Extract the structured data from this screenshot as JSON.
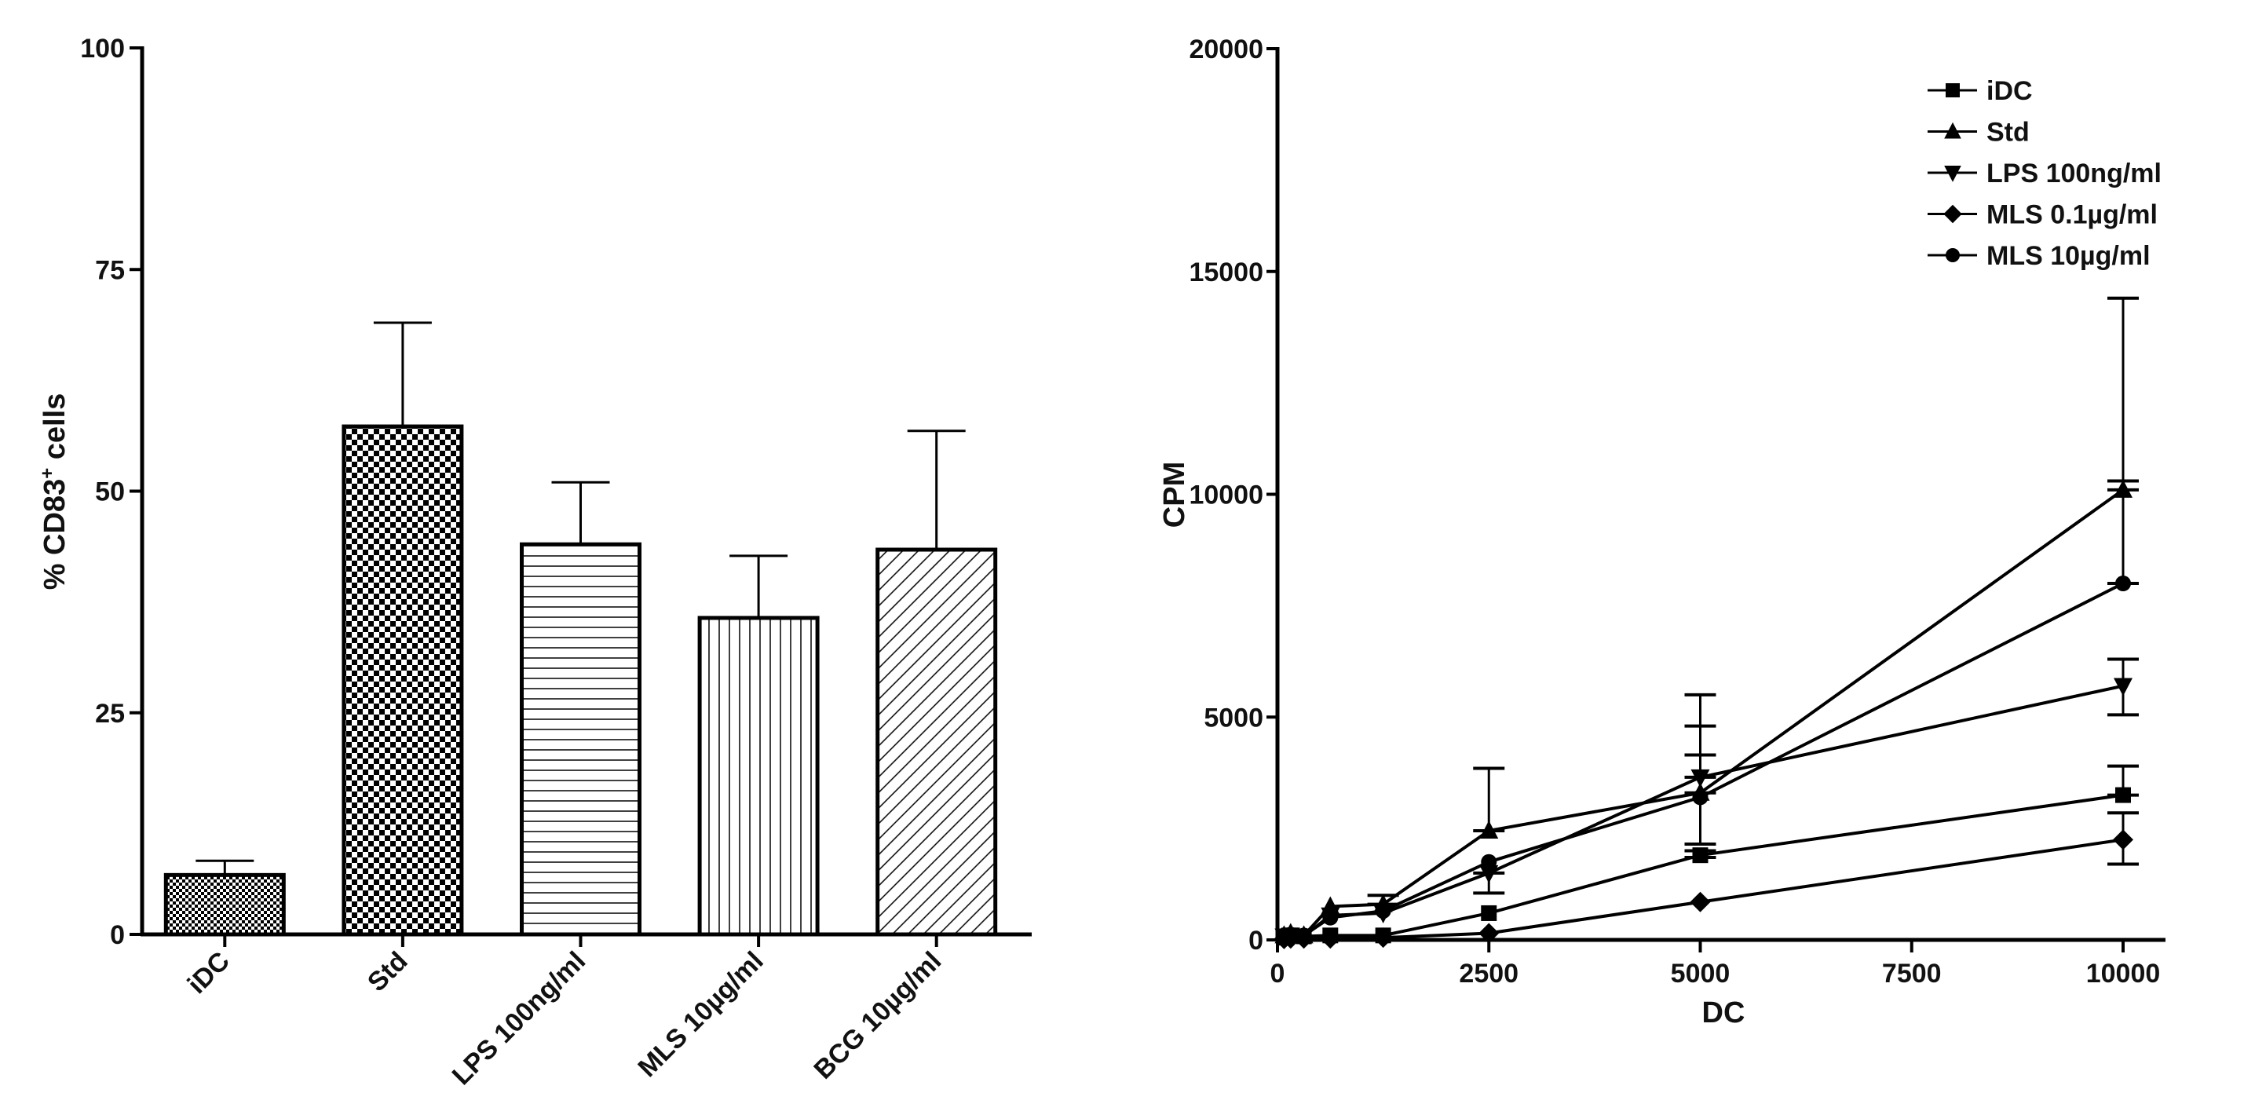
{
  "chart_data": [
    {
      "type": "bar",
      "title": "",
      "xlabel": "",
      "ylabel": "% CD83",
      "ylabel_sup": "+",
      "ylabel_suffix": " cells",
      "ylim": [
        0,
        100
      ],
      "yticks": [
        "0",
        "25",
        "50",
        "75",
        "100"
      ],
      "categories": [
        "iDC",
        "Std",
        "LPS 100ng/ml",
        "MLS 10µg/ml",
        "BCG 10µg/ml"
      ],
      "values": [
        6.7,
        57.3,
        44.0,
        35.7,
        43.4
      ],
      "error_upper": [
        8.3,
        69.0,
        51.0,
        42.7,
        56.8
      ],
      "patterns": [
        "fine-checker",
        "coarse-checker",
        "horizontal-lines",
        "vertical-lines",
        "diagonal-lines"
      ]
    },
    {
      "type": "line",
      "title": "",
      "xlabel": "DC",
      "ylabel": "CPM",
      "xlim": [
        0,
        10500
      ],
      "ylim": [
        0,
        20000
      ],
      "xticks": [
        "0",
        "2500",
        "5000",
        "7500",
        "10000"
      ],
      "yticks": [
        "0",
        "5000",
        "10000",
        "15000",
        "20000"
      ],
      "legend_position": "top-right",
      "x": [
        78,
        156,
        312,
        625,
        1250,
        2500,
        5000,
        10000
      ],
      "series": [
        {
          "name": "iDC",
          "marker": "square",
          "values": [
            50,
            100,
            80,
            100,
            100,
            600,
            1900,
            3250
          ],
          "errors": [
            null,
            null,
            null,
            null,
            null,
            null,
            [
              1850,
              2000
            ],
            [
              3250,
              3900
            ]
          ]
        },
        {
          "name": "Std",
          "marker": "triangle",
          "values": [
            100,
            150,
            100,
            750,
            800,
            2450,
            3300,
            10100
          ],
          "errors": [
            null,
            null,
            null,
            null,
            [
              800,
              1000
            ],
            [
              2450,
              3850
            ],
            [
              3300,
              5500
            ],
            [
              10100,
              10300
            ]
          ]
        },
        {
          "name": "LPS 100ng/ml",
          "marker": "triangle-down",
          "values": [
            80,
            100,
            80,
            550,
            600,
            1500,
            3650,
            5700
          ],
          "errors": [
            null,
            null,
            null,
            null,
            null,
            [
              1050,
              1500
            ],
            [
              3650,
              4150
            ],
            [
              5050,
              6300
            ]
          ]
        },
        {
          "name": "MLS 0.1µg/ml",
          "marker": "diamond",
          "values": [
            20,
            30,
            30,
            30,
            50,
            150,
            850,
            2250
          ],
          "errors": [
            null,
            null,
            null,
            null,
            null,
            null,
            null,
            [
              1700,
              2850
            ]
          ]
        },
        {
          "name": "MLS 10µg/ml",
          "marker": "circle",
          "values": [
            100,
            120,
            100,
            500,
            650,
            1750,
            3200,
            8000
          ],
          "errors": [
            null,
            null,
            null,
            null,
            null,
            null,
            [
              2150,
              4800
            ],
            [
              8000,
              14400
            ]
          ]
        }
      ]
    }
  ]
}
